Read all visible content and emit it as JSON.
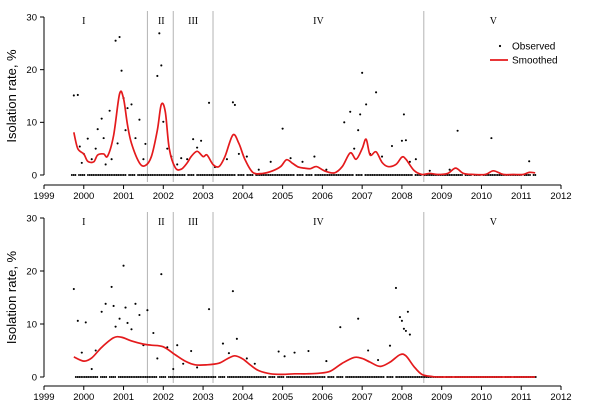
{
  "chart_data": [
    {
      "type": "scatter",
      "panel": "top",
      "xlim": [
        1999,
        2012
      ],
      "ylim": [
        0,
        30
      ],
      "xticks": [
        1999,
        2000,
        2001,
        2002,
        2003,
        2004,
        2005,
        2006,
        2007,
        2008,
        2009,
        2010,
        2011,
        2012
      ],
      "yticks": [
        0,
        10,
        20,
        30
      ],
      "ylabel": "Isolation rate, %",
      "legend": {
        "position": "top-right",
        "entries": [
          "Observed",
          "Smoothed"
        ]
      },
      "phase_boundaries": [
        2001.6,
        2002.25,
        2003.25,
        2008.55
      ],
      "phases": [
        {
          "label": "I",
          "x": 2000.0
        },
        {
          "label": "II",
          "x": 2001.95
        },
        {
          "label": "III",
          "x": 2002.75
        },
        {
          "label": "IV",
          "x": 2005.9
        },
        {
          "label": "V",
          "x": 2010.3
        }
      ],
      "series": [
        {
          "name": "Observed",
          "points": [
            [
              1999.75,
              15.1
            ],
            [
              1999.85,
              15.2
            ],
            [
              1999.9,
              5.4
            ],
            [
              1999.95,
              2.3
            ],
            [
              2000.0,
              4.0
            ],
            [
              2000.1,
              6.9
            ],
            [
              2000.2,
              3.0
            ],
            [
              2000.3,
              5.0
            ],
            [
              2000.35,
              8.7
            ],
            [
              2000.45,
              10.7
            ],
            [
              2000.5,
              7.0
            ],
            [
              2000.55,
              2.0
            ],
            [
              2000.65,
              12.2
            ],
            [
              2000.7,
              3.0
            ],
            [
              2000.8,
              25.5
            ],
            [
              2000.85,
              6.0
            ],
            [
              2000.9,
              26.2
            ],
            [
              2000.95,
              19.8
            ],
            [
              2001.0,
              14.6
            ],
            [
              2001.05,
              8.5
            ],
            [
              2001.1,
              12.7
            ],
            [
              2001.2,
              13.4
            ],
            [
              2001.3,
              7.0
            ],
            [
              2001.4,
              10.5
            ],
            [
              2001.5,
              3.0
            ],
            [
              2001.55,
              5.9
            ],
            [
              2001.85,
              18.8
            ],
            [
              2001.9,
              26.9
            ],
            [
              2001.95,
              20.8
            ],
            [
              2002.0,
              10.1
            ],
            [
              2002.1,
              5.0
            ],
            [
              2002.2,
              3.5
            ],
            [
              2002.35,
              2.0
            ],
            [
              2002.45,
              3.2
            ],
            [
              2002.6,
              3.0
            ],
            [
              2002.75,
              6.8
            ],
            [
              2002.85,
              5.2
            ],
            [
              2002.95,
              6.5
            ],
            [
              2003.15,
              13.7
            ],
            [
              2003.3,
              1.5
            ],
            [
              2003.6,
              3.0
            ],
            [
              2003.75,
              13.8
            ],
            [
              2003.8,
              13.3
            ],
            [
              2003.9,
              4.0
            ],
            [
              2004.1,
              3.5
            ],
            [
              2004.4,
              1.0
            ],
            [
              2004.7,
              2.5
            ],
            [
              2005.0,
              8.8
            ],
            [
              2005.2,
              3.2
            ],
            [
              2005.5,
              2.5
            ],
            [
              2005.8,
              3.5
            ],
            [
              2006.1,
              1.0
            ],
            [
              2006.55,
              10.0
            ],
            [
              2006.7,
              12.0
            ],
            [
              2006.8,
              5.0
            ],
            [
              2006.9,
              8.5
            ],
            [
              2006.95,
              11.5
            ],
            [
              2007.0,
              19.4
            ],
            [
              2007.1,
              13.4
            ],
            [
              2007.2,
              4.0
            ],
            [
              2007.35,
              15.7
            ],
            [
              2007.5,
              3.5
            ],
            [
              2007.75,
              5.5
            ],
            [
              2008.0,
              6.5
            ],
            [
              2008.05,
              11.5
            ],
            [
              2008.1,
              6.6
            ],
            [
              2008.2,
              2.5
            ],
            [
              2008.35,
              3.0
            ],
            [
              2008.7,
              0.8
            ],
            [
              2009.2,
              1.0
            ],
            [
              2009.4,
              8.4
            ],
            [
              2010.25,
              7.0
            ],
            [
              2011.2,
              2.6
            ]
          ]
        },
        {
          "name": "Smoothed",
          "points": [
            [
              1999.75,
              8.1
            ],
            [
              1999.85,
              5.0
            ],
            [
              2000.0,
              4.0
            ],
            [
              2000.1,
              2.6
            ],
            [
              2000.25,
              2.5
            ],
            [
              2000.35,
              3.8
            ],
            [
              2000.5,
              4.0
            ],
            [
              2000.6,
              3.6
            ],
            [
              2000.75,
              7.5
            ],
            [
              2000.9,
              15.4
            ],
            [
              2001.0,
              14.5
            ],
            [
              2001.1,
              9.5
            ],
            [
              2001.2,
              6.0
            ],
            [
              2001.4,
              2.3
            ],
            [
              2001.55,
              1.8
            ],
            [
              2001.7,
              3.5
            ],
            [
              2001.85,
              8.5
            ],
            [
              2001.95,
              13.4
            ],
            [
              2002.05,
              12.0
            ],
            [
              2002.15,
              5.0
            ],
            [
              2002.3,
              1.4
            ],
            [
              2002.45,
              1.1
            ],
            [
              2002.6,
              2.3
            ],
            [
              2002.7,
              3.5
            ],
            [
              2002.85,
              4.5
            ],
            [
              2003.0,
              3.5
            ],
            [
              2003.1,
              3.8
            ],
            [
              2003.25,
              2.0
            ],
            [
              2003.4,
              1.6
            ],
            [
              2003.55,
              3.5
            ],
            [
              2003.75,
              7.6
            ],
            [
              2003.9,
              6.0
            ],
            [
              2004.05,
              3.0
            ],
            [
              2004.25,
              0.5
            ],
            [
              2004.5,
              0.3
            ],
            [
              2004.75,
              0.8
            ],
            [
              2004.95,
              1.6
            ],
            [
              2005.1,
              2.9
            ],
            [
              2005.25,
              2.2
            ],
            [
              2005.4,
              1.5
            ],
            [
              2005.55,
              1.3
            ],
            [
              2005.7,
              1.2
            ],
            [
              2005.85,
              1.6
            ],
            [
              2006.05,
              0.8
            ],
            [
              2006.3,
              0.4
            ],
            [
              2006.5,
              1.6
            ],
            [
              2006.7,
              4.2
            ],
            [
              2006.85,
              3.0
            ],
            [
              2007.0,
              5.0
            ],
            [
              2007.1,
              6.8
            ],
            [
              2007.2,
              3.8
            ],
            [
              2007.35,
              4.4
            ],
            [
              2007.5,
              2.4
            ],
            [
              2007.65,
              1.6
            ],
            [
              2007.85,
              2.0
            ],
            [
              2008.0,
              3.4
            ],
            [
              2008.1,
              3.0
            ],
            [
              2008.3,
              0.9
            ],
            [
              2008.5,
              0.1
            ],
            [
              2008.7,
              0.3
            ],
            [
              2008.9,
              0.1
            ],
            [
              2009.15,
              0.3
            ],
            [
              2009.35,
              1.3
            ],
            [
              2009.55,
              0.3
            ],
            [
              2009.8,
              0.1
            ],
            [
              2010.1,
              0.1
            ],
            [
              2010.3,
              0.8
            ],
            [
              2010.55,
              0.1
            ],
            [
              2010.8,
              0.1
            ],
            [
              2011.05,
              0.1
            ],
            [
              2011.2,
              0.5
            ],
            [
              2011.35,
              0.4
            ]
          ]
        }
      ]
    },
    {
      "type": "scatter",
      "panel": "bottom",
      "xlim": [
        1999,
        2012
      ],
      "ylim": [
        0,
        30
      ],
      "xticks": [
        1999,
        2000,
        2001,
        2002,
        2003,
        2004,
        2005,
        2006,
        2007,
        2008,
        2009,
        2010,
        2011,
        2012
      ],
      "yticks": [
        0,
        10,
        20,
        30
      ],
      "ylabel": "Isolation rate, %",
      "phase_boundaries": [
        2001.6,
        2002.25,
        2003.25,
        2008.55
      ],
      "phases": [
        {
          "label": "I",
          "x": 2000.0
        },
        {
          "label": "II",
          "x": 2001.95
        },
        {
          "label": "III",
          "x": 2002.75
        },
        {
          "label": "IV",
          "x": 2005.9
        },
        {
          "label": "V",
          "x": 2010.3
        }
      ],
      "series": [
        {
          "name": "Observed",
          "points": [
            [
              1999.75,
              16.6
            ],
            [
              1999.85,
              10.6
            ],
            [
              1999.95,
              4.6
            ],
            [
              2000.05,
              10.3
            ],
            [
              2000.2,
              1.5
            ],
            [
              2000.3,
              5.0
            ],
            [
              2000.45,
              12.3
            ],
            [
              2000.55,
              13.8
            ],
            [
              2000.7,
              17.0
            ],
            [
              2000.75,
              13.4
            ],
            [
              2000.8,
              9.5
            ],
            [
              2000.9,
              11.0
            ],
            [
              2001.0,
              21.0
            ],
            [
              2001.05,
              13.1
            ],
            [
              2001.1,
              10.2
            ],
            [
              2001.2,
              9.0
            ],
            [
              2001.3,
              13.8
            ],
            [
              2001.4,
              11.7
            ],
            [
              2001.5,
              6.0
            ],
            [
              2001.6,
              12.6
            ],
            [
              2001.75,
              8.3
            ],
            [
              2001.85,
              3.5
            ],
            [
              2001.95,
              19.4
            ],
            [
              2002.1,
              5.6
            ],
            [
              2002.25,
              1.5
            ],
            [
              2002.35,
              6.0
            ],
            [
              2002.5,
              2.5
            ],
            [
              2002.7,
              4.9
            ],
            [
              2002.85,
              1.8
            ],
            [
              2003.15,
              12.8
            ],
            [
              2003.5,
              6.3
            ],
            [
              2003.65,
              4.5
            ],
            [
              2003.75,
              16.2
            ],
            [
              2003.85,
              7.2
            ],
            [
              2004.1,
              3.5
            ],
            [
              2004.3,
              2.5
            ],
            [
              2004.9,
              4.8
            ],
            [
              2005.05,
              3.9
            ],
            [
              2005.3,
              4.6
            ],
            [
              2005.65,
              4.9
            ],
            [
              2006.1,
              3.0
            ],
            [
              2006.45,
              9.4
            ],
            [
              2006.9,
              11.0
            ],
            [
              2007.15,
              5.0
            ],
            [
              2007.4,
              3.2
            ],
            [
              2007.7,
              5.9
            ],
            [
              2007.85,
              16.8
            ],
            [
              2007.95,
              11.3
            ],
            [
              2008.0,
              10.6
            ],
            [
              2008.05,
              9.1
            ],
            [
              2008.1,
              8.7
            ],
            [
              2008.15,
              12.3
            ],
            [
              2008.2,
              8.0
            ]
          ]
        },
        {
          "name": "Smoothed",
          "points": [
            [
              1999.75,
              3.8
            ],
            [
              2000.0,
              3.0
            ],
            [
              2000.2,
              3.6
            ],
            [
              2000.45,
              5.6
            ],
            [
              2000.75,
              7.4
            ],
            [
              2000.95,
              7.5
            ],
            [
              2001.2,
              6.8
            ],
            [
              2001.5,
              6.2
            ],
            [
              2001.7,
              6.0
            ],
            [
              2002.0,
              5.7
            ],
            [
              2002.3,
              4.2
            ],
            [
              2002.55,
              3.0
            ],
            [
              2002.8,
              2.3
            ],
            [
              2003.1,
              2.3
            ],
            [
              2003.4,
              2.6
            ],
            [
              2003.6,
              3.4
            ],
            [
              2003.8,
              4.0
            ],
            [
              2004.0,
              3.4
            ],
            [
              2004.2,
              2.2
            ],
            [
              2004.4,
              1.2
            ],
            [
              2004.7,
              0.6
            ],
            [
              2005.0,
              0.5
            ],
            [
              2005.3,
              0.6
            ],
            [
              2005.6,
              0.6
            ],
            [
              2005.9,
              0.7
            ],
            [
              2006.2,
              1.1
            ],
            [
              2006.5,
              2.6
            ],
            [
              2006.8,
              3.7
            ],
            [
              2007.0,
              3.5
            ],
            [
              2007.2,
              2.8
            ],
            [
              2007.45,
              2.0
            ],
            [
              2007.7,
              2.8
            ],
            [
              2007.95,
              4.2
            ],
            [
              2008.1,
              4.0
            ],
            [
              2008.3,
              2.0
            ],
            [
              2008.5,
              0.5
            ],
            [
              2008.75,
              0.1
            ],
            [
              2009.0,
              0.0
            ],
            [
              2010.0,
              0.0
            ],
            [
              2011.35,
              0.0
            ]
          ]
        }
      ]
    }
  ]
}
